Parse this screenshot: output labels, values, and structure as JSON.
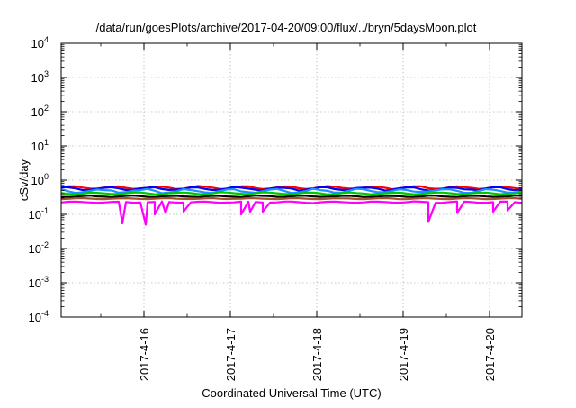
{
  "chart_data": {
    "type": "line",
    "title": "/data/run/goesPlots/archive/2017-04-20/09:00/flux/../bryn/5daysMoon.plot",
    "xlabel": "Coordinated Universal Time (UTC)",
    "ylabel": "cSv/day",
    "yscale": "log",
    "ylim": [
      0.0001,
      10000
    ],
    "xlim": [
      "2017-04-15T01:00",
      "2017-04-20T09:00"
    ],
    "grid": true,
    "y_ticks": [
      {
        "base": "10",
        "exp": "-4"
      },
      {
        "base": "10",
        "exp": "-3"
      },
      {
        "base": "10",
        "exp": "-2"
      },
      {
        "base": "10",
        "exp": "-1"
      },
      {
        "base": "10",
        "exp": "0"
      },
      {
        "base": "10",
        "exp": "1"
      },
      {
        "base": "10",
        "exp": "2"
      },
      {
        "base": "10",
        "exp": "3"
      },
      {
        "base": "10",
        "exp": "4"
      }
    ],
    "x_ticks": [
      "2017-4-16",
      "2017-4-17",
      "2017-4-18",
      "2017-4-19",
      "2017-4-20"
    ],
    "series": [
      {
        "color": "#ff0000",
        "level": 0.62,
        "spread": 0.1,
        "dips": []
      },
      {
        "color": "#0000ff",
        "level": 0.58,
        "spread": 0.12,
        "dips": []
      },
      {
        "color": "#1e90ff",
        "level": 0.5,
        "spread": 0.14,
        "dips": []
      },
      {
        "color": "#00c800",
        "level": 0.42,
        "spread": 0.07,
        "dips": []
      },
      {
        "color": "#000000",
        "level": 0.34,
        "spread": 0.05,
        "dips": []
      },
      {
        "color": "#a0522d",
        "level": 0.29,
        "spread": 0.04,
        "dips": []
      },
      {
        "color": "#ff00ff",
        "level": 0.23,
        "spread": 0.05,
        "dips": [
          {
            "x": "2017-04-15T18:00",
            "y": 0.055
          },
          {
            "x": "2017-04-16T00:30",
            "y": 0.05
          },
          {
            "x": "2017-04-16T03:00",
            "y": 0.1
          },
          {
            "x": "2017-04-16T06:00",
            "y": 0.11
          },
          {
            "x": "2017-04-16T11:00",
            "y": 0.12
          },
          {
            "x": "2017-04-17T03:00",
            "y": 0.1
          },
          {
            "x": "2017-04-17T05:30",
            "y": 0.12
          },
          {
            "x": "2017-04-17T09:00",
            "y": 0.12
          },
          {
            "x": "2017-04-19T07:00",
            "y": 0.06
          },
          {
            "x": "2017-04-19T15:00",
            "y": 0.11
          },
          {
            "x": "2017-04-20T01:00",
            "y": 0.12
          },
          {
            "x": "2017-04-20T05:00",
            "y": 0.13
          }
        ]
      }
    ]
  }
}
